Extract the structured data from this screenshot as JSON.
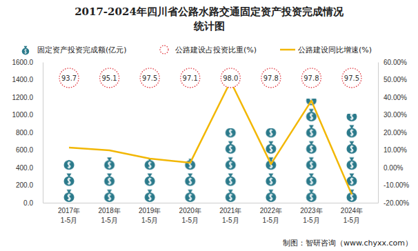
{
  "chart_data": {
    "type": "bar",
    "title": [
      "2017-2024年四川省公路水路交通固定资产投资完成情况",
      "统计图"
    ],
    "categories": [
      "2017年\n1-5月",
      "2018年\n1-5月",
      "2019年\n1-5月",
      "2020年\n1-5月",
      "2021年\n1-5月",
      "2022年\n1-5月",
      "2023年\n1-5月",
      "2024年\n1-5月"
    ],
    "series": [
      {
        "name": "固定资产投资完成额(亿元)",
        "type": "bar",
        "marker": "bag",
        "color": "#2b7a8b",
        "values": [
          486,
          518,
          500,
          500,
          847,
          847,
          1184,
          1012
        ]
      },
      {
        "name": "公路建设占投资比重(%)",
        "type": "text",
        "marker": "circle",
        "line_style": "dotted",
        "color": "#e0343c",
        "data_labels": true,
        "values": [
          93.7,
          95.1,
          97.5,
          97.1,
          98.0,
          97.8,
          97.8,
          97.5
        ],
        "value_labels": [
          "93.7",
          "95.1",
          "97.5",
          "97.1",
          "98.0",
          "97.8",
          "97.8",
          "97.5"
        ]
      },
      {
        "name": "公路建设同比增速(%)",
        "type": "line",
        "axis": "y2",
        "color": "#f2b705",
        "values": [
          11.4,
          9.8,
          5.1,
          2.7,
          49,
          2,
          38,
          -15.3
        ]
      }
    ],
    "ylim": [
      0,
      1600
    ],
    "yticks": [
      {
        "value": 0,
        "label": "0.0"
      },
      {
        "value": 200,
        "label": "200.0"
      },
      {
        "value": 400,
        "label": "400.0"
      },
      {
        "value": 600,
        "label": "600.0"
      },
      {
        "value": 800,
        "label": "800.0"
      },
      {
        "value": 1000,
        "label": "1000.0"
      },
      {
        "value": 1200,
        "label": "1200.0"
      },
      {
        "value": 1400,
        "label": "1400.0"
      },
      {
        "value": 1600,
        "label": "1600.0"
      }
    ],
    "y2lim": [
      -20,
      60
    ],
    "y2ticks": [
      {
        "value": -20,
        "label": "-20.00%"
      },
      {
        "value": -10,
        "label": "-10.00%"
      },
      {
        "value": 0,
        "label": "0.00%"
      },
      {
        "value": 10,
        "label": "10.00%"
      },
      {
        "value": 20,
        "label": "20.00%"
      },
      {
        "value": 30,
        "label": "30.00%"
      },
      {
        "value": 40,
        "label": "40.00%"
      },
      {
        "value": 50,
        "label": "50.00%"
      },
      {
        "value": 60,
        "label": "60.00%"
      }
    ],
    "legend": "top",
    "source": "制图：智研咨询（www.chyxx.com）"
  }
}
